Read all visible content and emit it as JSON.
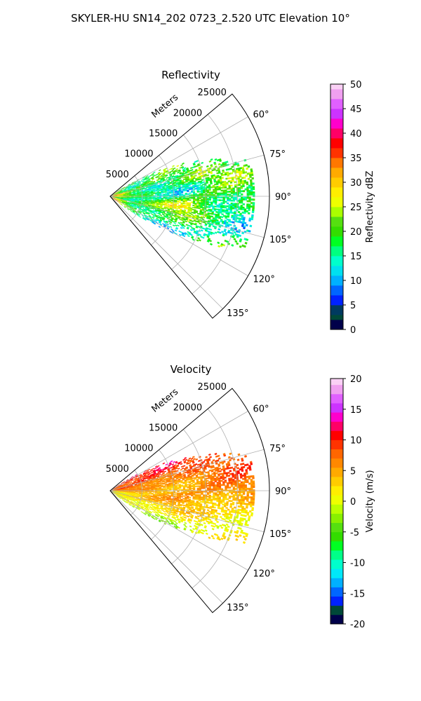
{
  "figure": {
    "suptitle": "SKYLER-HU  SN14_202  0723_2.520 UTC Elevation 10°"
  },
  "chart_data": [
    {
      "type": "heatmap",
      "projection": "polar",
      "title": "Reflectivity",
      "radial_label": "Meters",
      "radial_ticks": [
        5000,
        10000,
        15000,
        20000,
        25000
      ],
      "radial_tick_labels": [
        "5000",
        "10000",
        "15000",
        "20000",
        "25000"
      ],
      "rlim": [
        0,
        25000
      ],
      "theta_ticks": [
        60,
        75,
        90,
        105,
        120,
        135
      ],
      "theta_tick_labels": [
        "60°",
        "75°",
        "90°",
        "105°",
        "120°",
        "135°"
      ],
      "theta_range_deg": [
        50,
        140
      ],
      "grid": true,
      "colorbar": {
        "label": "Reflectivity dBZ",
        "ticks": [
          0,
          5,
          10,
          15,
          20,
          25,
          30,
          35,
          40,
          45,
          50
        ],
        "tick_labels": [
          "0",
          "5",
          "10",
          "15",
          "20",
          "25",
          "30",
          "35",
          "40",
          "45",
          "50"
        ],
        "range": [
          0,
          50
        ],
        "stops": [
          {
            "v": 0,
            "c": "#00004a"
          },
          {
            "v": 2,
            "c": "#004838"
          },
          {
            "v": 3,
            "c": "#003a60"
          },
          {
            "v": 5,
            "c": "#0022ff"
          },
          {
            "v": 7,
            "c": "#0066ff"
          },
          {
            "v": 9,
            "c": "#00b0ff"
          },
          {
            "v": 11,
            "c": "#00e0f0"
          },
          {
            "v": 13,
            "c": "#00ffcc"
          },
          {
            "v": 15,
            "c": "#00ff80"
          },
          {
            "v": 17,
            "c": "#00ff22"
          },
          {
            "v": 19,
            "c": "#33dd00"
          },
          {
            "v": 21,
            "c": "#55e010"
          },
          {
            "v": 23,
            "c": "#aaff00"
          },
          {
            "v": 25,
            "c": "#eeff00"
          },
          {
            "v": 27,
            "c": "#ffee00"
          },
          {
            "v": 29,
            "c": "#ffcc00"
          },
          {
            "v": 31,
            "c": "#ffaa00"
          },
          {
            "v": 33,
            "c": "#ff7700"
          },
          {
            "v": 35,
            "c": "#ff3300"
          },
          {
            "v": 37,
            "c": "#ff0000"
          },
          {
            "v": 39,
            "c": "#ff0066"
          },
          {
            "v": 41,
            "c": "#ff00cc"
          },
          {
            "v": 43,
            "c": "#cc33ff"
          },
          {
            "v": 45,
            "c": "#e060ff"
          },
          {
            "v": 47,
            "c": "#f0a0f0"
          },
          {
            "v": 49,
            "c": "#fad0f5"
          },
          {
            "v": 50,
            "c": "#fbe0f8"
          }
        ]
      },
      "field": {
        "median": 16,
        "core_value": 22,
        "near_value": 30,
        "spread": 5,
        "r_max": 22500
      }
    },
    {
      "type": "heatmap",
      "projection": "polar",
      "title": "Velocity",
      "radial_label": "Meters",
      "radial_ticks": [
        5000,
        10000,
        15000,
        20000,
        25000
      ],
      "radial_tick_labels": [
        "5000",
        "10000",
        "15000",
        "20000",
        "25000"
      ],
      "rlim": [
        0,
        25000
      ],
      "theta_ticks": [
        60,
        75,
        90,
        105,
        120,
        135
      ],
      "theta_tick_labels": [
        "60°",
        "75°",
        "90°",
        "105°",
        "120°",
        "135°"
      ],
      "theta_range_deg": [
        50,
        140
      ],
      "grid": true,
      "colorbar": {
        "label": "Velocity (m/s)",
        "ticks": [
          -20,
          -15,
          -10,
          -5,
          0,
          5,
          10,
          15,
          20
        ],
        "tick_labels": [
          "-20",
          "-15",
          "-10",
          "-5",
          "0",
          "5",
          "10",
          "15",
          "20"
        ],
        "range": [
          -20,
          20
        ],
        "stops": [
          {
            "v": -20,
            "c": "#00004a"
          },
          {
            "v": -18.5,
            "c": "#004838"
          },
          {
            "v": -17,
            "c": "#0022ff"
          },
          {
            "v": -15.5,
            "c": "#0066ff"
          },
          {
            "v": -14,
            "c": "#00b0ff"
          },
          {
            "v": -12.5,
            "c": "#00e8f8"
          },
          {
            "v": -11,
            "c": "#00ffcc"
          },
          {
            "v": -9.5,
            "c": "#00ff88"
          },
          {
            "v": -8,
            "c": "#00ff22"
          },
          {
            "v": -6.5,
            "c": "#33dd00"
          },
          {
            "v": -5,
            "c": "#55e010"
          },
          {
            "v": -3.5,
            "c": "#88f000"
          },
          {
            "v": -2,
            "c": "#bbff00"
          },
          {
            "v": -0.5,
            "c": "#eeff00"
          },
          {
            "v": 1,
            "c": "#ffee00"
          },
          {
            "v": 2.5,
            "c": "#ffcc00"
          },
          {
            "v": 4,
            "c": "#ffaa00"
          },
          {
            "v": 5.5,
            "c": "#ff8800"
          },
          {
            "v": 7,
            "c": "#ff6600"
          },
          {
            "v": 8.5,
            "c": "#ff3300"
          },
          {
            "v": 10,
            "c": "#ff0000"
          },
          {
            "v": 11.5,
            "c": "#ff0066"
          },
          {
            "v": 13,
            "c": "#ff00cc"
          },
          {
            "v": 14.5,
            "c": "#cc33ff"
          },
          {
            "v": 16,
            "c": "#e060ff"
          },
          {
            "v": 17.5,
            "c": "#f0a0f0"
          },
          {
            "v": 19,
            "c": "#fad0f5"
          },
          {
            "v": 20,
            "c": "#fbe0f8"
          }
        ]
      },
      "field": {
        "north_value": 10,
        "south_value": -3,
        "spread": 2,
        "r_max": 22500
      }
    }
  ]
}
